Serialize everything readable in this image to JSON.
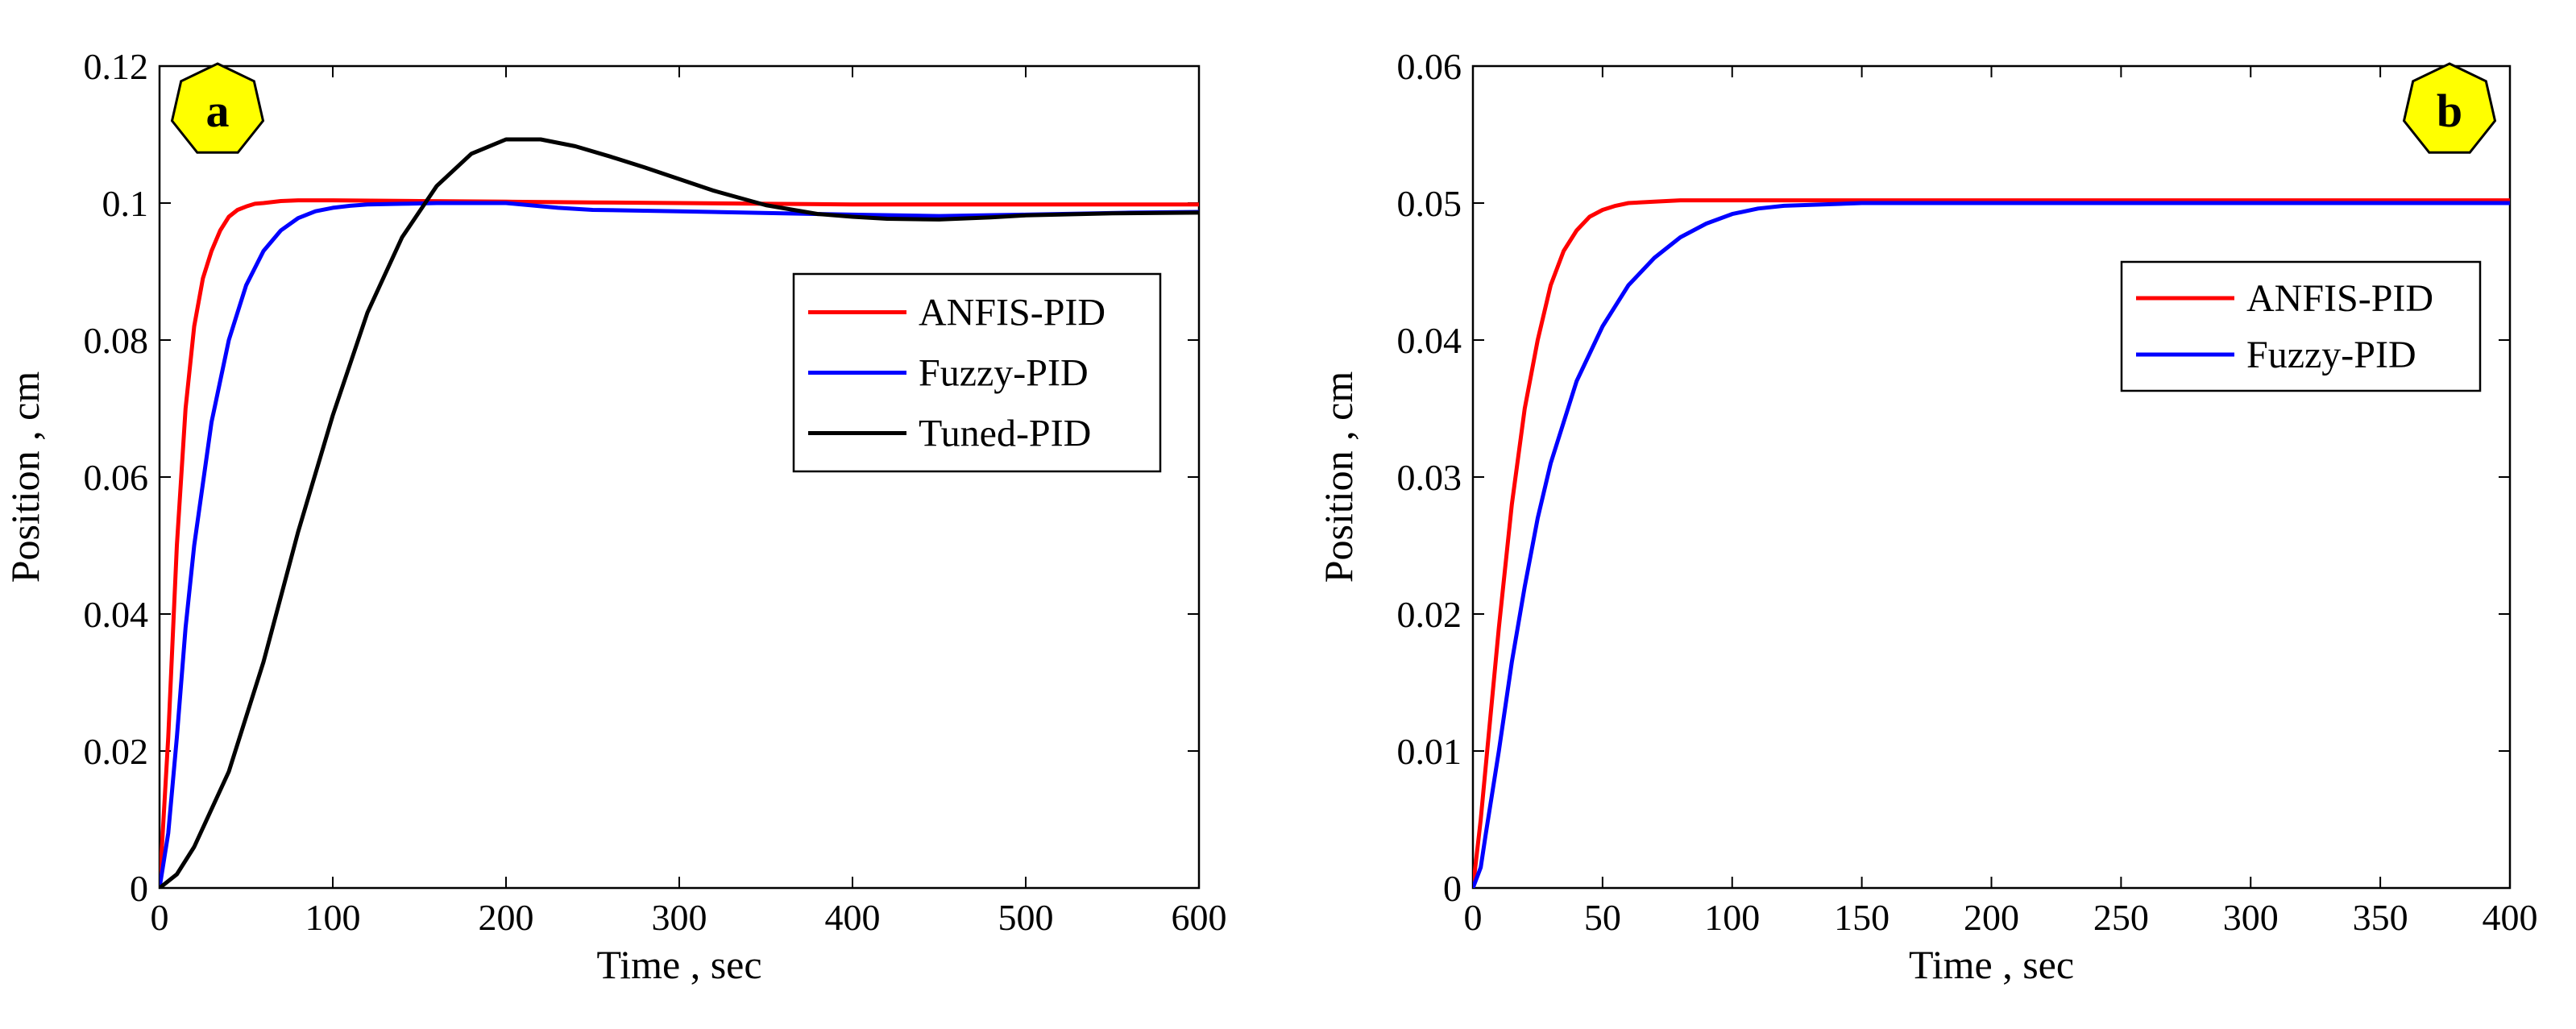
{
  "chart_data": [
    {
      "type": "line",
      "panel_label": "a",
      "xlabel": "Time , sec",
      "ylabel": "Position , cm",
      "xlim": [
        0,
        600
      ],
      "ylim": [
        0,
        0.12
      ],
      "xticks": [
        "0",
        "100",
        "200",
        "300",
        "400",
        "500",
        "600"
      ],
      "yticks": [
        "0",
        "0.02",
        "0.04",
        "0.06",
        "0.08",
        "0.1",
        "0.12"
      ],
      "legend_position": "right-middle",
      "series": [
        {
          "name": "ANFIS-PID",
          "color": "#ff0000",
          "x": [
            0,
            5,
            10,
            15,
            20,
            25,
            30,
            35,
            40,
            45,
            50,
            55,
            60,
            70,
            80,
            100,
            150,
            200,
            250,
            300,
            400,
            500,
            600
          ],
          "y": [
            0,
            0.022,
            0.05,
            0.07,
            0.082,
            0.089,
            0.093,
            0.096,
            0.098,
            0.099,
            0.0995,
            0.0999,
            0.1,
            0.1003,
            0.1004,
            0.1004,
            0.1003,
            0.1002,
            0.1001,
            0.1,
            0.0998,
            0.0998,
            0.0998
          ]
        },
        {
          "name": "Fuzzy-PID",
          "color": "#0000ff",
          "x": [
            0,
            5,
            10,
            15,
            20,
            30,
            40,
            50,
            60,
            70,
            80,
            90,
            100,
            110,
            120,
            140,
            160,
            200,
            230,
            250,
            300,
            400,
            450,
            500,
            560,
            600
          ],
          "y": [
            0,
            0.008,
            0.022,
            0.038,
            0.05,
            0.068,
            0.08,
            0.088,
            0.093,
            0.096,
            0.0978,
            0.0988,
            0.0993,
            0.0996,
            0.0998,
            0.0999,
            0.1,
            0.1,
            0.0993,
            0.099,
            0.0988,
            0.0983,
            0.0981,
            0.0983,
            0.0986,
            0.0987
          ]
        },
        {
          "name": "Tuned-PID",
          "color": "#000000",
          "x": [
            0,
            10,
            20,
            40,
            60,
            80,
            100,
            120,
            140,
            160,
            180,
            200,
            220,
            240,
            260,
            280,
            300,
            320,
            350,
            380,
            400,
            420,
            450,
            480,
            500,
            550,
            600
          ],
          "y": [
            0,
            0.002,
            0.006,
            0.017,
            0.033,
            0.052,
            0.069,
            0.084,
            0.095,
            0.1025,
            0.1072,
            0.1093,
            0.1093,
            0.1083,
            0.1068,
            0.1052,
            0.1035,
            0.1018,
            0.0997,
            0.0984,
            0.098,
            0.0977,
            0.0976,
            0.0979,
            0.0982,
            0.0985,
            0.0986
          ]
        }
      ]
    },
    {
      "type": "line",
      "panel_label": "b",
      "xlabel": "Time , sec",
      "ylabel": "Position ,  cm",
      "xlim": [
        0,
        400
      ],
      "ylim": [
        0,
        0.06
      ],
      "xticks": [
        "0",
        "50",
        "100",
        "150",
        "200",
        "250",
        "300",
        "350",
        "400"
      ],
      "yticks": [
        "0",
        "0.01",
        "0.02",
        "0.03",
        "0.04",
        "0.05",
        "0.06"
      ],
      "legend_position": "upper-right",
      "series": [
        {
          "name": "ANFIS-PID",
          "color": "#ff0000",
          "x": [
            0,
            3,
            6,
            10,
            15,
            20,
            25,
            30,
            35,
            40,
            45,
            50,
            55,
            60,
            70,
            80,
            100,
            150,
            200,
            300,
            400
          ],
          "y": [
            0,
            0.005,
            0.011,
            0.019,
            0.028,
            0.035,
            0.04,
            0.044,
            0.0465,
            0.048,
            0.049,
            0.0495,
            0.0498,
            0.05,
            0.0501,
            0.0502,
            0.0502,
            0.0502,
            0.0502,
            0.0502,
            0.0502
          ]
        },
        {
          "name": "Fuzzy-PID",
          "color": "#0000ff",
          "x": [
            0,
            3,
            5,
            10,
            15,
            20,
            25,
            30,
            40,
            50,
            60,
            70,
            80,
            90,
            100,
            110,
            120,
            150,
            200,
            300,
            400
          ],
          "y": [
            0,
            0.0015,
            0.004,
            0.01,
            0.0165,
            0.022,
            0.027,
            0.031,
            0.037,
            0.041,
            0.044,
            0.046,
            0.0475,
            0.0485,
            0.0492,
            0.0496,
            0.0498,
            0.05,
            0.05,
            0.05,
            0.05
          ]
        }
      ]
    }
  ]
}
